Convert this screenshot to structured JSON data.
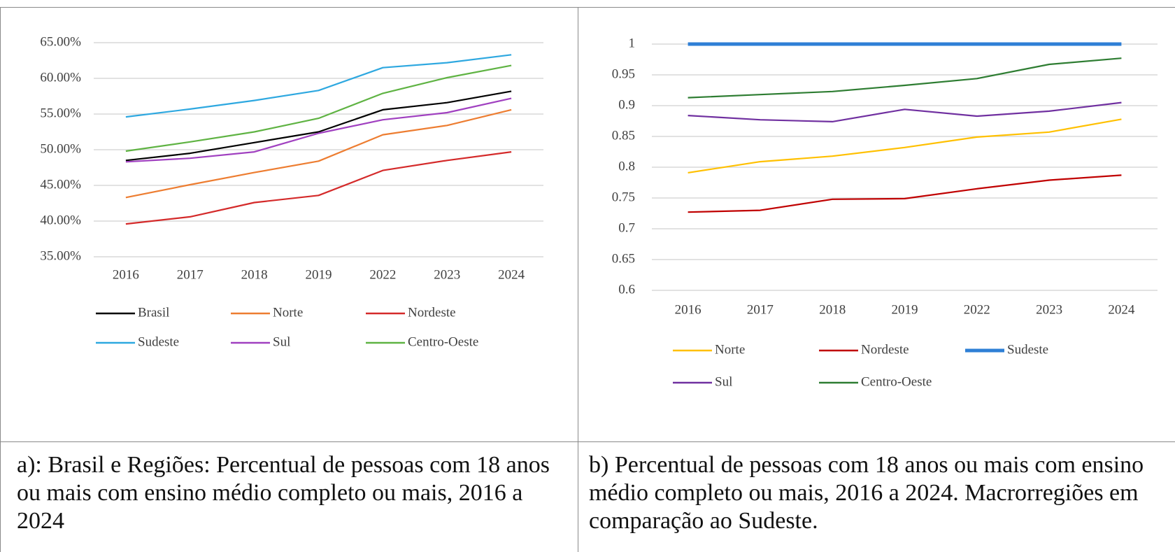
{
  "chart_data": [
    {
      "type": "line",
      "caption": "a): Brasil e Regiões: Percentual de pessoas com 18 anos ou mais com ensino médio completo ou mais, 2016 a 2024",
      "categories": [
        "2016",
        "2017",
        "2018",
        "2019",
        "2022",
        "2023",
        "2024"
      ],
      "ylim": [
        35,
        65
      ],
      "yticks": [
        {
          "value": 35,
          "label": "35.00%"
        },
        {
          "value": 40,
          "label": "40.00%"
        },
        {
          "value": 45,
          "label": "45.00%"
        },
        {
          "value": 50,
          "label": "50.00%"
        },
        {
          "value": 55,
          "label": "55.00%"
        },
        {
          "value": 60,
          "label": "60.00%"
        },
        {
          "value": 65,
          "label": "65.00%"
        }
      ],
      "grid": true,
      "legend": "bottom",
      "series": [
        {
          "name": "Brasil",
          "color": "#000000",
          "values": [
            48.5,
            49.5,
            51.0,
            52.5,
            55.6,
            56.6,
            58.2
          ]
        },
        {
          "name": "Norte",
          "color": "#ed7d31",
          "values": [
            43.3,
            45.1,
            46.8,
            48.4,
            52.1,
            53.4,
            55.6
          ]
        },
        {
          "name": "Nordeste",
          "color": "#d42a2a",
          "values": [
            39.6,
            40.6,
            42.6,
            43.6,
            47.1,
            48.5,
            49.7
          ]
        },
        {
          "name": "Sudeste",
          "color": "#2ea8e0",
          "values": [
            54.6,
            55.7,
            56.9,
            58.3,
            61.5,
            62.2,
            63.3
          ]
        },
        {
          "name": "Sul",
          "color": "#a040c0",
          "values": [
            48.3,
            48.8,
            49.7,
            52.3,
            54.2,
            55.2,
            57.2
          ]
        },
        {
          "name": "Centro-Oeste",
          "color": "#5fb343",
          "values": [
            49.8,
            51.1,
            52.5,
            54.4,
            57.9,
            60.1,
            61.8
          ]
        }
      ]
    },
    {
      "type": "line",
      "caption": "b) Percentual de pessoas com 18 anos ou mais com ensino médio completo ou mais, 2016 a 2024. Macrorregiões em comparação ao Sudeste.",
      "categories": [
        "2016",
        "2017",
        "2018",
        "2019",
        "2022",
        "2023",
        "2024"
      ],
      "ylim": [
        0.6,
        1
      ],
      "yticks": [
        0.6,
        0.65,
        0.7,
        0.75,
        0.8,
        0.85,
        0.9,
        0.95,
        1
      ],
      "grid": true,
      "legend": "bottom",
      "series": [
        {
          "name": "Norte",
          "color": "#ffc000",
          "values": [
            0.791,
            0.809,
            0.818,
            0.832,
            0.849,
            0.857,
            0.878
          ]
        },
        {
          "name": "Nordeste",
          "color": "#c00000",
          "values": [
            0.727,
            0.73,
            0.748,
            0.749,
            0.765,
            0.779,
            0.787
          ]
        },
        {
          "name": "Sudeste",
          "color": "#2e7fd6",
          "width": 5,
          "values": [
            1,
            1,
            1,
            1,
            1,
            1,
            1
          ]
        },
        {
          "name": "Sul",
          "color": "#7030a0",
          "values": [
            0.884,
            0.877,
            0.874,
            0.894,
            0.883,
            0.891,
            0.905
          ]
        },
        {
          "name": "Centro-Oeste",
          "color": "#2e7d32",
          "values": [
            0.913,
            0.918,
            0.923,
            0.933,
            0.944,
            0.967,
            0.977
          ]
        }
      ]
    }
  ]
}
